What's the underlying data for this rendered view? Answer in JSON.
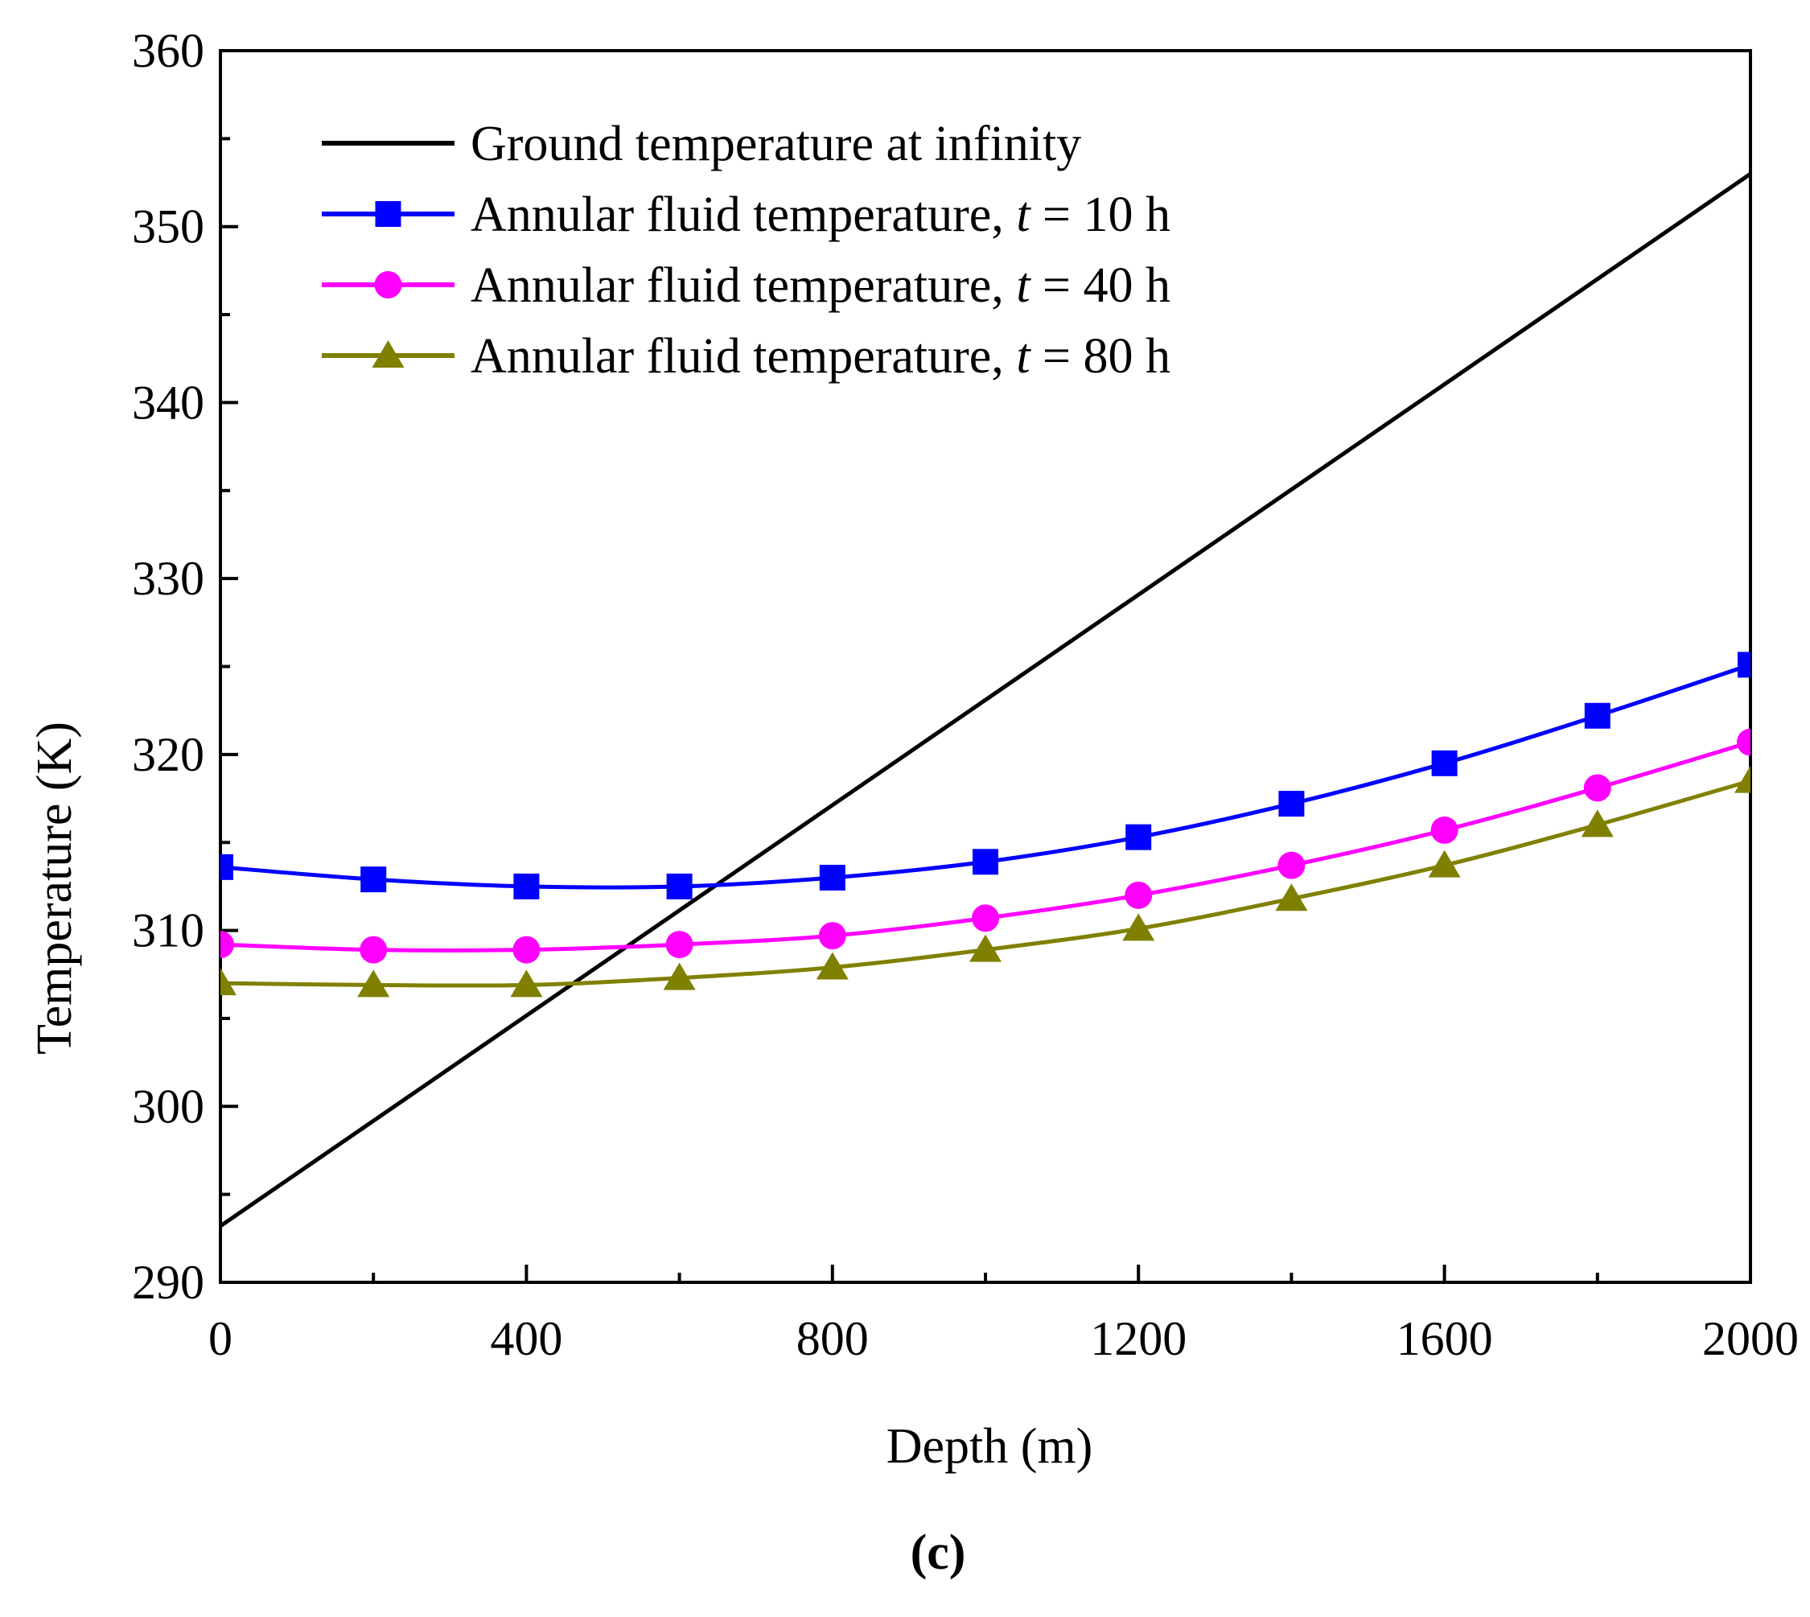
{
  "chart_data": {
    "type": "line",
    "xlabel": "Depth (m)",
    "ylabel": "Temperature (K)",
    "panel_label": "(c)",
    "xlim": [
      0,
      2000
    ],
    "ylim": [
      290,
      360
    ],
    "x_ticks": [
      0,
      400,
      800,
      1200,
      1600,
      2000
    ],
    "y_ticks": [
      290,
      300,
      310,
      320,
      330,
      340,
      350,
      360
    ],
    "grid": false,
    "legend_position": "top-left",
    "series": [
      {
        "name": "Ground temperature at infinity",
        "legend_prefix": "Ground temperature at infinity",
        "legend_t": "",
        "legend_suffix": "",
        "color": "#000000",
        "marker": "none",
        "x": [
          0,
          2000
        ],
        "values": [
          293.2,
          353.0
        ]
      },
      {
        "name": "Annular fluid temperature, t = 10 h",
        "legend_prefix": "Annular fluid temperature, ",
        "legend_t": "t",
        "legend_suffix": " = 10 h",
        "color": "#0000ff",
        "marker": "square",
        "x": [
          0,
          200,
          400,
          600,
          800,
          1000,
          1200,
          1400,
          1600,
          1800,
          2000
        ],
        "values": [
          313.6,
          312.9,
          312.5,
          312.5,
          313.0,
          313.9,
          315.3,
          317.2,
          319.5,
          322.2,
          325.1
        ]
      },
      {
        "name": "Annular fluid temperature, t = 40 h",
        "legend_prefix": "Annular fluid temperature, ",
        "legend_t": "t",
        "legend_suffix": " = 40 h",
        "color": "#ff00ff",
        "marker": "circle",
        "x": [
          0,
          200,
          400,
          600,
          800,
          1000,
          1200,
          1400,
          1600,
          1800,
          2000
        ],
        "values": [
          309.2,
          308.9,
          308.9,
          309.2,
          309.7,
          310.7,
          312.0,
          313.7,
          315.7,
          318.1,
          320.7
        ]
      },
      {
        "name": "Annular fluid temperature, t = 80 h",
        "legend_prefix": "Annular fluid temperature, ",
        "legend_t": "t",
        "legend_suffix": " = 80 h",
        "color": "#808000",
        "marker": "triangle",
        "x": [
          0,
          200,
          400,
          600,
          800,
          1000,
          1200,
          1400,
          1600,
          1800,
          2000
        ],
        "values": [
          307.0,
          306.9,
          306.9,
          307.3,
          307.9,
          308.9,
          310.1,
          311.8,
          313.7,
          316.0,
          318.5
        ]
      }
    ]
  }
}
